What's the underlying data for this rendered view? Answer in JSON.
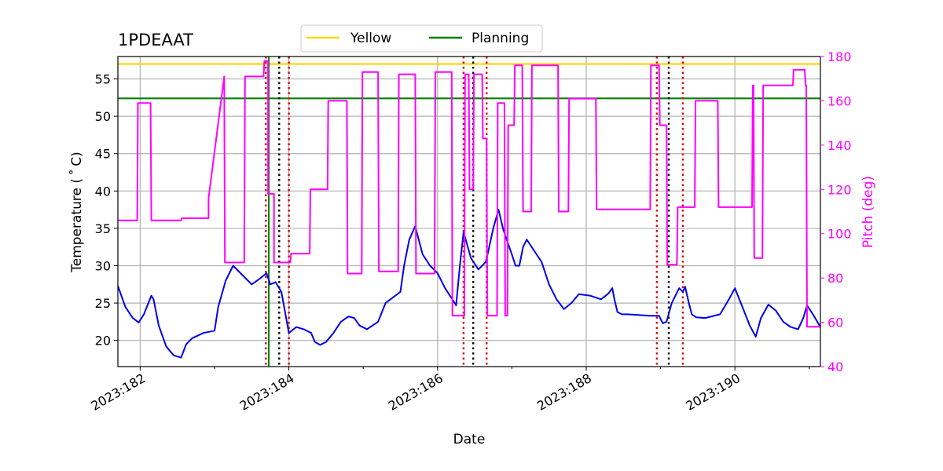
{
  "chart_data": {
    "type": "line",
    "title": "1PDEAAT",
    "xlabel": "Date",
    "ylabel": "Temperature ($^\\circ$C)",
    "ylabel_display": "Temperature ( ˚ C)",
    "y2label": "Pitch (deg)",
    "xlim": [
      181.7,
      191.15
    ],
    "ylim": [
      16.5,
      58
    ],
    "y2lim": [
      40,
      180
    ],
    "x_ticks": [
      182,
      184,
      186,
      188,
      190
    ],
    "x_tick_labels": [
      "2023:182",
      "2023:184",
      "2023:186",
      "2023:188",
      "2023:190"
    ],
    "x_minor_ticks": [
      183,
      185,
      187,
      189,
      191
    ],
    "y_ticks": [
      20,
      25,
      30,
      35,
      40,
      45,
      50,
      55
    ],
    "y2_ticks": [
      40,
      60,
      80,
      100,
      120,
      140,
      160,
      180
    ],
    "grid": true,
    "legend": {
      "position": "top-center-outside",
      "entries": [
        "Yellow",
        "Planning"
      ]
    },
    "colors": {
      "temperature": "#0000ee",
      "pitch": "#ff00ff",
      "yellow": "#ffd700",
      "planning": "#008000",
      "red_marker": "#dd0000",
      "black_marker": "#000000",
      "grid": "#b0b0b0",
      "right_axis": "#ff00ff"
    },
    "series": [
      {
        "name": "Yellow",
        "color": "#ffd700",
        "y": 57
      },
      {
        "name": "Planning",
        "color": "#008000",
        "y": 52.4
      },
      {
        "name": "Temperature",
        "axis": "left",
        "color": "#0000ee",
        "x": [
          181.7,
          181.8,
          181.9,
          181.98,
          182.05,
          182.15,
          182.18,
          182.25,
          182.35,
          182.45,
          182.55,
          182.58,
          182.62,
          182.7,
          182.85,
          183.0,
          183.05,
          183.15,
          183.25,
          183.35,
          183.5,
          183.6,
          183.7,
          183.75,
          183.82,
          183.9,
          184.0,
          184.1,
          184.2,
          184.3,
          184.35,
          184.42,
          184.5,
          184.6,
          184.7,
          184.8,
          184.88,
          184.95,
          185.05,
          185.2,
          185.3,
          185.5,
          185.55,
          185.62,
          185.7,
          185.72,
          185.8,
          185.9,
          186.0,
          186.1,
          186.2,
          186.25,
          186.3,
          186.35,
          186.45,
          186.55,
          186.65,
          186.75,
          186.82,
          186.88,
          186.93,
          187.0,
          187.05,
          187.1,
          187.15,
          187.2,
          187.3,
          187.4,
          187.5,
          187.6,
          187.7,
          187.8,
          187.9,
          188.05,
          188.2,
          188.3,
          188.35,
          188.38,
          188.42,
          188.48,
          188.55,
          188.7,
          188.85,
          188.98,
          189.03,
          189.08,
          189.15,
          189.25,
          189.3,
          189.33,
          189.38,
          189.42,
          189.48,
          189.6,
          189.8,
          189.92,
          190.0,
          190.1,
          190.2,
          190.28,
          190.35,
          190.45,
          190.55,
          190.65,
          190.75,
          190.85,
          190.92,
          190.97,
          191.05,
          191.15
        ],
        "y": [
          27.3,
          24.5,
          23.0,
          22.4,
          23.5,
          26.0,
          25.5,
          22.0,
          19.2,
          18.0,
          17.7,
          18.5,
          19.5,
          20.3,
          21.0,
          21.3,
          24.5,
          28.0,
          30.0,
          29.0,
          27.5,
          28.2,
          29.0,
          27.5,
          27.8,
          26.5,
          21.0,
          21.8,
          21.5,
          21.0,
          19.8,
          19.4,
          19.8,
          21.0,
          22.5,
          23.2,
          23.0,
          22.0,
          21.5,
          22.5,
          25.0,
          26.5,
          30.0,
          33.5,
          35.3,
          34.5,
          31.5,
          30.0,
          29.0,
          27.0,
          25.5,
          24.7,
          30.0,
          34.5,
          31.0,
          29.5,
          30.5,
          35.0,
          37.5,
          35.0,
          33.5,
          31.5,
          30.0,
          30.0,
          32.5,
          33.5,
          32.0,
          30.5,
          27.5,
          25.5,
          24.2,
          25.0,
          26.2,
          26.0,
          25.5,
          26.3,
          27.0,
          25.5,
          23.8,
          23.5,
          23.5,
          23.4,
          23.3,
          23.3,
          22.3,
          22.5,
          25.0,
          27.0,
          26.5,
          27.2,
          25.0,
          23.5,
          23.1,
          23.0,
          23.5,
          25.5,
          27.0,
          24.5,
          22.0,
          20.5,
          23.0,
          24.8,
          24.0,
          22.5,
          21.8,
          21.5,
          23.0,
          24.7,
          23.5,
          21.8
        ]
      },
      {
        "name": "Pitch",
        "axis": "right",
        "color": "#ff00ff",
        "x": [
          181.7,
          181.96,
          181.97,
          182.14,
          182.15,
          182.55,
          182.55,
          182.56,
          182.91,
          182.92,
          182.92,
          183.13,
          183.14,
          183.4,
          183.41,
          183.66,
          183.67,
          183.72,
          183.72,
          183.8,
          183.8,
          183.86,
          183.87,
          184.02,
          184.03,
          184.28,
          184.29,
          184.52,
          184.53,
          184.78,
          184.79,
          184.98,
          184.99,
          185.2,
          185.21,
          185.47,
          185.48,
          185.7,
          185.71,
          185.96,
          185.97,
          186.19,
          186.2,
          186.36,
          186.37,
          186.42,
          186.43,
          186.48,
          186.49,
          186.6,
          186.61,
          186.66,
          186.67,
          186.8,
          186.81,
          186.9,
          186.91,
          186.94,
          186.95,
          187.03,
          187.04,
          187.14,
          187.15,
          187.26,
          187.27,
          187.62,
          187.63,
          187.76,
          187.77,
          188.13,
          188.14,
          188.29,
          188.3,
          188.86,
          188.87,
          188.98,
          188.99,
          189.08,
          189.09,
          189.22,
          189.23,
          189.46,
          189.47,
          189.77,
          189.78,
          189.97,
          189.98,
          190.23,
          190.24,
          190.25,
          190.26,
          190.37,
          190.38,
          190.78,
          190.79,
          190.94,
          190.95,
          190.96,
          190.97,
          190.99,
          191.0,
          191.15
        ],
        "y": [
          106,
          106,
          159,
          159,
          106,
          106,
          106,
          107,
          107,
          107,
          116,
          171,
          87,
          87,
          171,
          171,
          178,
          178,
          118,
          118,
          87,
          87,
          87,
          87,
          91,
          91,
          120,
          120,
          160,
          160,
          82,
          82,
          173,
          173,
          83,
          83,
          172,
          172,
          82,
          82,
          173,
          173,
          63,
          63,
          172,
          172,
          120,
          120,
          172,
          172,
          143,
          143,
          63,
          63,
          159,
          159,
          63,
          63,
          149,
          149,
          176,
          176,
          110,
          110,
          176,
          176,
          110,
          110,
          161,
          161,
          111,
          111,
          111,
          111,
          176,
          176,
          149,
          149,
          86,
          86,
          112,
          112,
          160,
          160,
          112,
          112,
          112,
          112,
          167,
          167,
          89,
          89,
          167,
          167,
          174,
          174,
          167,
          167,
          58,
          58,
          58,
          58
        ]
      }
    ],
    "vlines": [
      {
        "x": 183.69,
        "color": "#dd0000",
        "style": "dotted"
      },
      {
        "x": 183.73,
        "color": "#008000",
        "style": "solid"
      },
      {
        "x": 183.87,
        "color": "#000000",
        "style": "dotted"
      },
      {
        "x": 184.0,
        "color": "#dd0000",
        "style": "dotted"
      },
      {
        "x": 186.35,
        "color": "#dd0000",
        "style": "dotted"
      },
      {
        "x": 186.48,
        "color": "#000000",
        "style": "dotted"
      },
      {
        "x": 186.66,
        "color": "#dd0000",
        "style": "dotted"
      },
      {
        "x": 188.95,
        "color": "#dd0000",
        "style": "dotted"
      },
      {
        "x": 189.11,
        "color": "#000000",
        "style": "dotted"
      },
      {
        "x": 189.3,
        "color": "#dd0000",
        "style": "dotted"
      }
    ]
  }
}
